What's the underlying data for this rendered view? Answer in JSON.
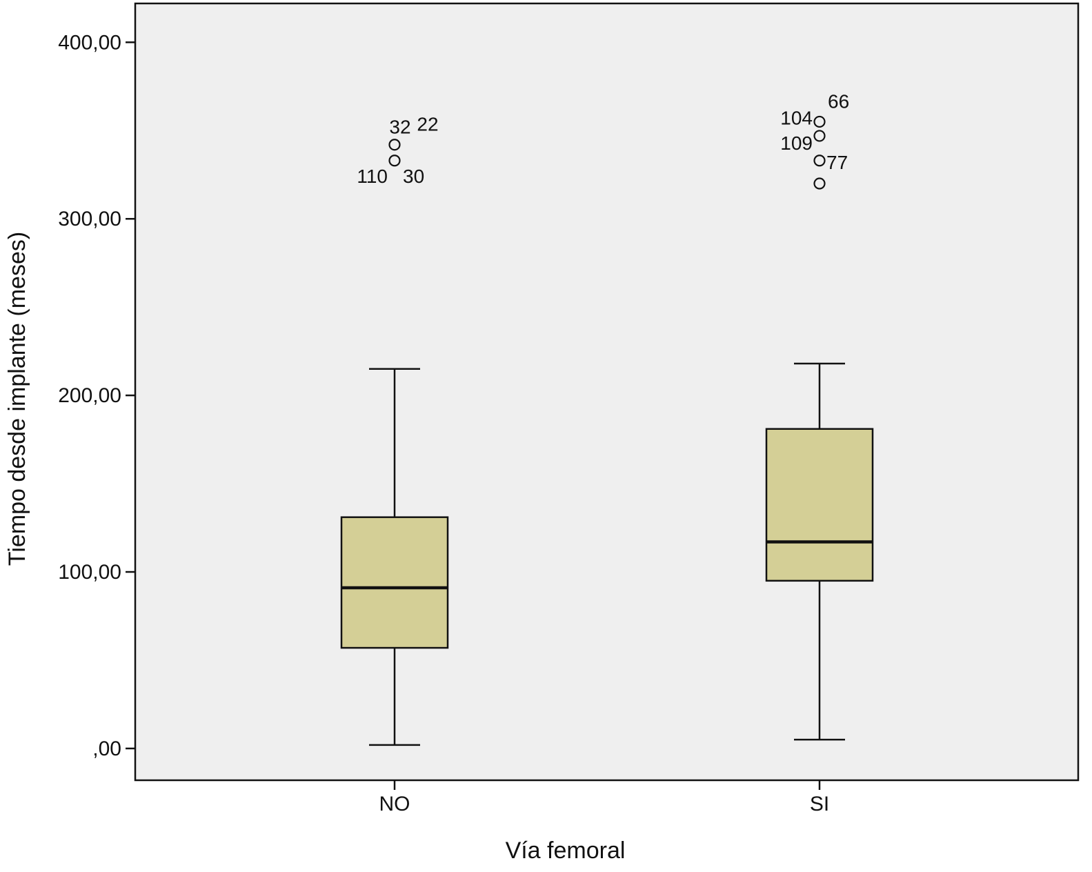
{
  "chart_data": {
    "type": "boxplot",
    "title": "",
    "xlabel": "Vía femoral",
    "ylabel": "Tiempo desde implante (meses)",
    "ylim": [
      -18,
      422
    ],
    "y_ticks": [
      0,
      100,
      200,
      300,
      400
    ],
    "y_tick_labels": [
      ",00",
      "100,00",
      "200,00",
      "300,00",
      "400,00"
    ],
    "grid": false,
    "colors": {
      "plot_background": "#efefef",
      "box_fill": "#d4cf96",
      "line": "#111111"
    },
    "categories": [
      "NO",
      "SI"
    ],
    "boxes": [
      {
        "category": "NO",
        "whisker_low": 2,
        "q1": 57,
        "median": 91,
        "q3": 131,
        "whisker_high": 215,
        "outliers": [
          {
            "value": 342,
            "label": "32"
          },
          {
            "value": 342,
            "label": "22"
          },
          {
            "value": 333,
            "label": "110"
          },
          {
            "value": 333,
            "label": "30"
          }
        ]
      },
      {
        "category": "SI",
        "whisker_low": 5,
        "q1": 95,
        "median": 117,
        "q3": 181,
        "whisker_high": 218,
        "outliers": [
          {
            "value": 355,
            "label": "66"
          },
          {
            "value": 355,
            "label": "104"
          },
          {
            "value": 347,
            "label": "109"
          },
          {
            "value": 333,
            "label": "77"
          },
          {
            "value": 320,
            "label": ""
          }
        ]
      }
    ]
  }
}
